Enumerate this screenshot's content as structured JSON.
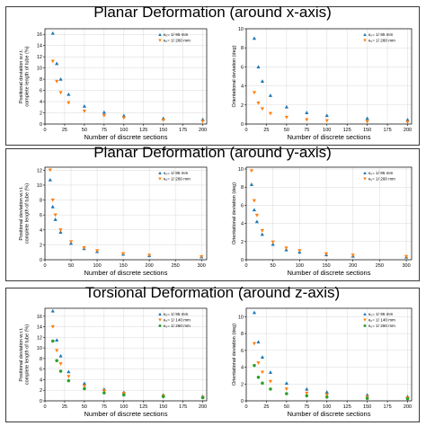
{
  "sections": [
    {
      "title": "Planar Deformation (around x-axis)"
    },
    {
      "title": "Planar Deformation (around y-axis)"
    },
    {
      "title": "Torsional Deformation (around z-axis)"
    }
  ],
  "chart_data": [
    {
      "type": "scatter",
      "xlabel": "Number of discrete sections",
      "ylabel": "Positional deviation w.r.t. complete length of tube (%)",
      "xticks": [
        0,
        25,
        50,
        75,
        100,
        125,
        150,
        175,
        200
      ],
      "yticks": [
        0,
        2,
        4,
        6,
        8,
        10,
        12,
        14,
        16
      ],
      "xlim": [
        0,
        205
      ],
      "ylim": [
        0,
        17
      ],
      "grid": true,
      "legend_position": "top-right",
      "series": [
        {
          "name": "κ₀= 1/ 95 mm",
          "color": "#1f77b4",
          "marker": "triangle-up",
          "x": [
            10,
            15,
            20,
            30,
            50,
            75,
            100,
            150,
            200
          ],
          "y": [
            16.2,
            10.8,
            8.0,
            5.3,
            3.2,
            2.1,
            1.5,
            1.0,
            0.8
          ]
        },
        {
          "name": "κ₀= 1/ 260 mm",
          "color": "#ff7f0e",
          "marker": "triangle-down",
          "x": [
            10,
            15,
            20,
            30,
            50,
            75,
            100,
            150,
            200
          ],
          "y": [
            11.2,
            7.6,
            5.6,
            3.8,
            2.3,
            1.5,
            1.1,
            0.7,
            0.5
          ]
        }
      ]
    },
    {
      "type": "scatter",
      "xlabel": "Number of discrete sections",
      "ylabel": "Orientational deviation (deg)",
      "xticks": [
        0,
        25,
        50,
        75,
        100,
        125,
        150,
        175,
        200
      ],
      "yticks": [
        0,
        2,
        4,
        6,
        8,
        10
      ],
      "xlim": [
        0,
        205
      ],
      "ylim": [
        0,
        10
      ],
      "grid": true,
      "legend_position": "top-right",
      "series": [
        {
          "name": "κ₀= 1/ 95 mm",
          "color": "#1f77b4",
          "marker": "triangle-up",
          "x": [
            10,
            15,
            20,
            30,
            50,
            75,
            100,
            150,
            200
          ],
          "y": [
            9.0,
            6.0,
            4.5,
            3.0,
            1.8,
            1.2,
            0.9,
            0.6,
            0.45
          ]
        },
        {
          "name": "κ₀= 1/ 260 mm",
          "color": "#ff7f0e",
          "marker": "triangle-down",
          "x": [
            10,
            15,
            20,
            30,
            50,
            75,
            100,
            150,
            200
          ],
          "y": [
            3.3,
            2.2,
            1.6,
            1.1,
            0.7,
            0.45,
            0.35,
            0.25,
            0.2
          ]
        }
      ]
    },
    {
      "type": "scatter",
      "xlabel": "Number of discrete sections",
      "ylabel": "Positional deviation w.r.t. complete length of tube (%)",
      "xticks": [
        0,
        50,
        100,
        150,
        200,
        250,
        300
      ],
      "yticks": [
        0,
        2,
        4,
        6,
        8,
        10,
        12
      ],
      "xlim": [
        0,
        310
      ],
      "ylim": [
        0,
        12.4
      ],
      "grid": true,
      "legend_position": "top-right",
      "series": [
        {
          "name": "κ₀= 1/ 95 mm",
          "color": "#1f77b4",
          "marker": "triangle-up",
          "x": [
            10,
            15,
            20,
            30,
            50,
            75,
            100,
            150,
            200,
            300
          ],
          "y": [
            10.7,
            7.1,
            5.4,
            3.7,
            2.2,
            1.5,
            1.1,
            0.75,
            0.55,
            0.4
          ]
        },
        {
          "name": "κ₀= 1/ 260 mm",
          "color": "#ff7f0e",
          "marker": "triangle-down",
          "x": [
            10,
            15,
            20,
            30,
            50,
            75,
            100,
            150,
            200,
            300
          ],
          "y": [
            12.0,
            8.0,
            6.0,
            4.0,
            2.4,
            1.6,
            1.2,
            0.8,
            0.6,
            0.4
          ]
        }
      ]
    },
    {
      "type": "scatter",
      "xlabel": "Number of discrete sections",
      "ylabel": "Orientational deviation (deg)",
      "xticks": [
        0,
        50,
        100,
        150,
        200,
        250,
        300
      ],
      "yticks": [
        0,
        2,
        4,
        6,
        8,
        10
      ],
      "xlim": [
        0,
        310
      ],
      "ylim": [
        0,
        10.2
      ],
      "grid": true,
      "legend_position": "top-right",
      "series": [
        {
          "name": "κ₀= 1/ 95 mm",
          "color": "#1f77b4",
          "marker": "triangle-up",
          "x": [
            10,
            15,
            20,
            30,
            50,
            75,
            100,
            150,
            200,
            300
          ],
          "y": [
            8.3,
            5.5,
            4.2,
            2.8,
            1.7,
            1.1,
            0.85,
            0.55,
            0.4,
            0.3
          ]
        },
        {
          "name": "κ₀= 1/ 260 mm",
          "color": "#ff7f0e",
          "marker": "triangle-down",
          "x": [
            10,
            15,
            20,
            30,
            50,
            75,
            100,
            150,
            200,
            300
          ],
          "y": [
            9.8,
            6.5,
            4.9,
            3.2,
            1.95,
            1.3,
            1.0,
            0.65,
            0.5,
            0.35
          ]
        }
      ]
    },
    {
      "type": "scatter",
      "xlabel": "Number of discrete sections",
      "ylabel": "Positional deviation w.r.t. complete length of tube (%)",
      "xticks": [
        0,
        25,
        50,
        75,
        100,
        125,
        150,
        175,
        200
      ],
      "yticks": [
        0,
        2,
        4,
        6,
        8,
        10,
        12,
        14,
        16
      ],
      "xlim": [
        0,
        205
      ],
      "ylim": [
        0,
        17.5
      ],
      "grid": true,
      "legend_position": "top-right",
      "series": [
        {
          "name": "κ₀= 1/ 95 mm",
          "color": "#1f77b4",
          "marker": "triangle-up",
          "x": [
            10,
            15,
            20,
            30,
            50,
            75,
            100,
            150,
            200
          ],
          "y": [
            17.0,
            11.5,
            8.5,
            5.5,
            3.3,
            2.2,
            1.6,
            1.1,
            0.8
          ]
        },
        {
          "name": "κ₀= 1/ 140 mm",
          "color": "#ff7f0e",
          "marker": "triangle-down",
          "x": [
            10,
            15,
            20,
            30,
            50,
            75,
            100,
            150,
            200
          ],
          "y": [
            14.0,
            9.5,
            7.0,
            4.6,
            2.8,
            1.9,
            1.4,
            0.9,
            0.7
          ]
        },
        {
          "name": "κ₀= 1/ 260 mm",
          "color": "#2ca02c",
          "marker": "circle",
          "x": [
            10,
            15,
            20,
            30,
            50,
            75,
            100,
            150,
            200
          ],
          "y": [
            11.3,
            7.6,
            5.6,
            3.8,
            2.3,
            1.5,
            1.1,
            0.8,
            0.6
          ]
        }
      ]
    },
    {
      "type": "scatter",
      "xlabel": "Number of discrete sections",
      "ylabel": "Orientational deviation (deg)",
      "xticks": [
        0,
        25,
        50,
        75,
        100,
        125,
        150,
        175,
        200
      ],
      "yticks": [
        0,
        2,
        4,
        6,
        8,
        10
      ],
      "xlim": [
        0,
        205
      ],
      "ylim": [
        0,
        11
      ],
      "grid": true,
      "legend_position": "top-right",
      "series": [
        {
          "name": "κ₀= 1/ 95 mm",
          "color": "#1f77b4",
          "marker": "triangle-up",
          "x": [
            10,
            15,
            20,
            30,
            50,
            75,
            100,
            150,
            200
          ],
          "y": [
            10.5,
            7.0,
            5.2,
            3.4,
            2.1,
            1.4,
            1.05,
            0.7,
            0.5
          ]
        },
        {
          "name": "κ₀= 1/ 140 mm",
          "color": "#ff7f0e",
          "marker": "triangle-down",
          "x": [
            10,
            15,
            20,
            30,
            50,
            75,
            100,
            150,
            200
          ],
          "y": [
            6.8,
            4.5,
            3.4,
            2.3,
            1.4,
            0.9,
            0.7,
            0.45,
            0.35
          ]
        },
        {
          "name": "κ₀= 1/ 260 mm",
          "color": "#2ca02c",
          "marker": "circle",
          "x": [
            10,
            15,
            20,
            30,
            50,
            75,
            100,
            150,
            200
          ],
          "y": [
            4.2,
            2.8,
            2.1,
            1.4,
            0.85,
            0.6,
            0.45,
            0.3,
            0.25
          ]
        }
      ]
    }
  ]
}
